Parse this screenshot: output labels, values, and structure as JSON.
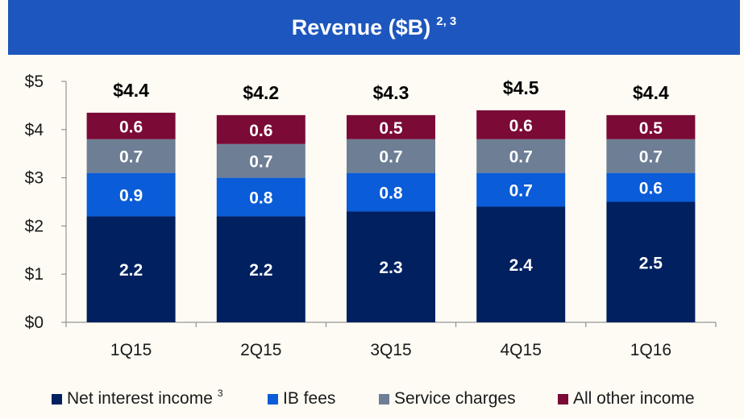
{
  "title": {
    "text": "Revenue ($B)",
    "superscript": "2, 3"
  },
  "colors": {
    "background": "#fdfbf4",
    "title_bar": "#1d56be",
    "axis": "#7f7f7f",
    "bar_label": "#ffffff",
    "total_label": "#000000"
  },
  "chart_data": {
    "type": "bar",
    "stacked": true,
    "title": "Revenue ($B)",
    "categories": [
      "1Q15",
      "2Q15",
      "3Q15",
      "4Q15",
      "1Q16"
    ],
    "series": [
      {
        "name": "Net interest income",
        "superscript": "3",
        "color": "#002060",
        "values": [
          2.2,
          2.2,
          2.3,
          2.4,
          2.5
        ],
        "labels": [
          "2.2",
          "2.2",
          "2.3",
          "2.4",
          "2.5"
        ]
      },
      {
        "name": "IB fees",
        "color": "#0a5cd8",
        "values": [
          0.9,
          0.8,
          0.8,
          0.7,
          0.6
        ],
        "labels": [
          "0.9",
          "0.8",
          "0.8",
          "0.7",
          "0.6"
        ]
      },
      {
        "name": "Service charges",
        "color": "#6d7e95",
        "values": [
          0.7,
          0.7,
          0.7,
          0.7,
          0.7
        ],
        "labels": [
          "0.7",
          "0.7",
          "0.7",
          "0.7",
          "0.7"
        ]
      },
      {
        "name": "All other income",
        "color": "#7b0a36",
        "values": [
          0.55,
          0.6,
          0.5,
          0.6,
          0.5
        ],
        "labels": [
          "0.6",
          "0.6",
          "0.5",
          "0.6",
          "0.5"
        ]
      }
    ],
    "totals": [
      "$4.4",
      "$4.2",
      "$4.3",
      "$4.5",
      "$4.4"
    ],
    "y_ticks": [
      0,
      1,
      2,
      3,
      4,
      5
    ],
    "y_tick_labels": [
      "$0",
      "$1",
      "$2",
      "$3",
      "$4",
      "$5"
    ],
    "ylim": [
      0,
      5
    ],
    "grid": false,
    "legend_position": "bottom"
  }
}
